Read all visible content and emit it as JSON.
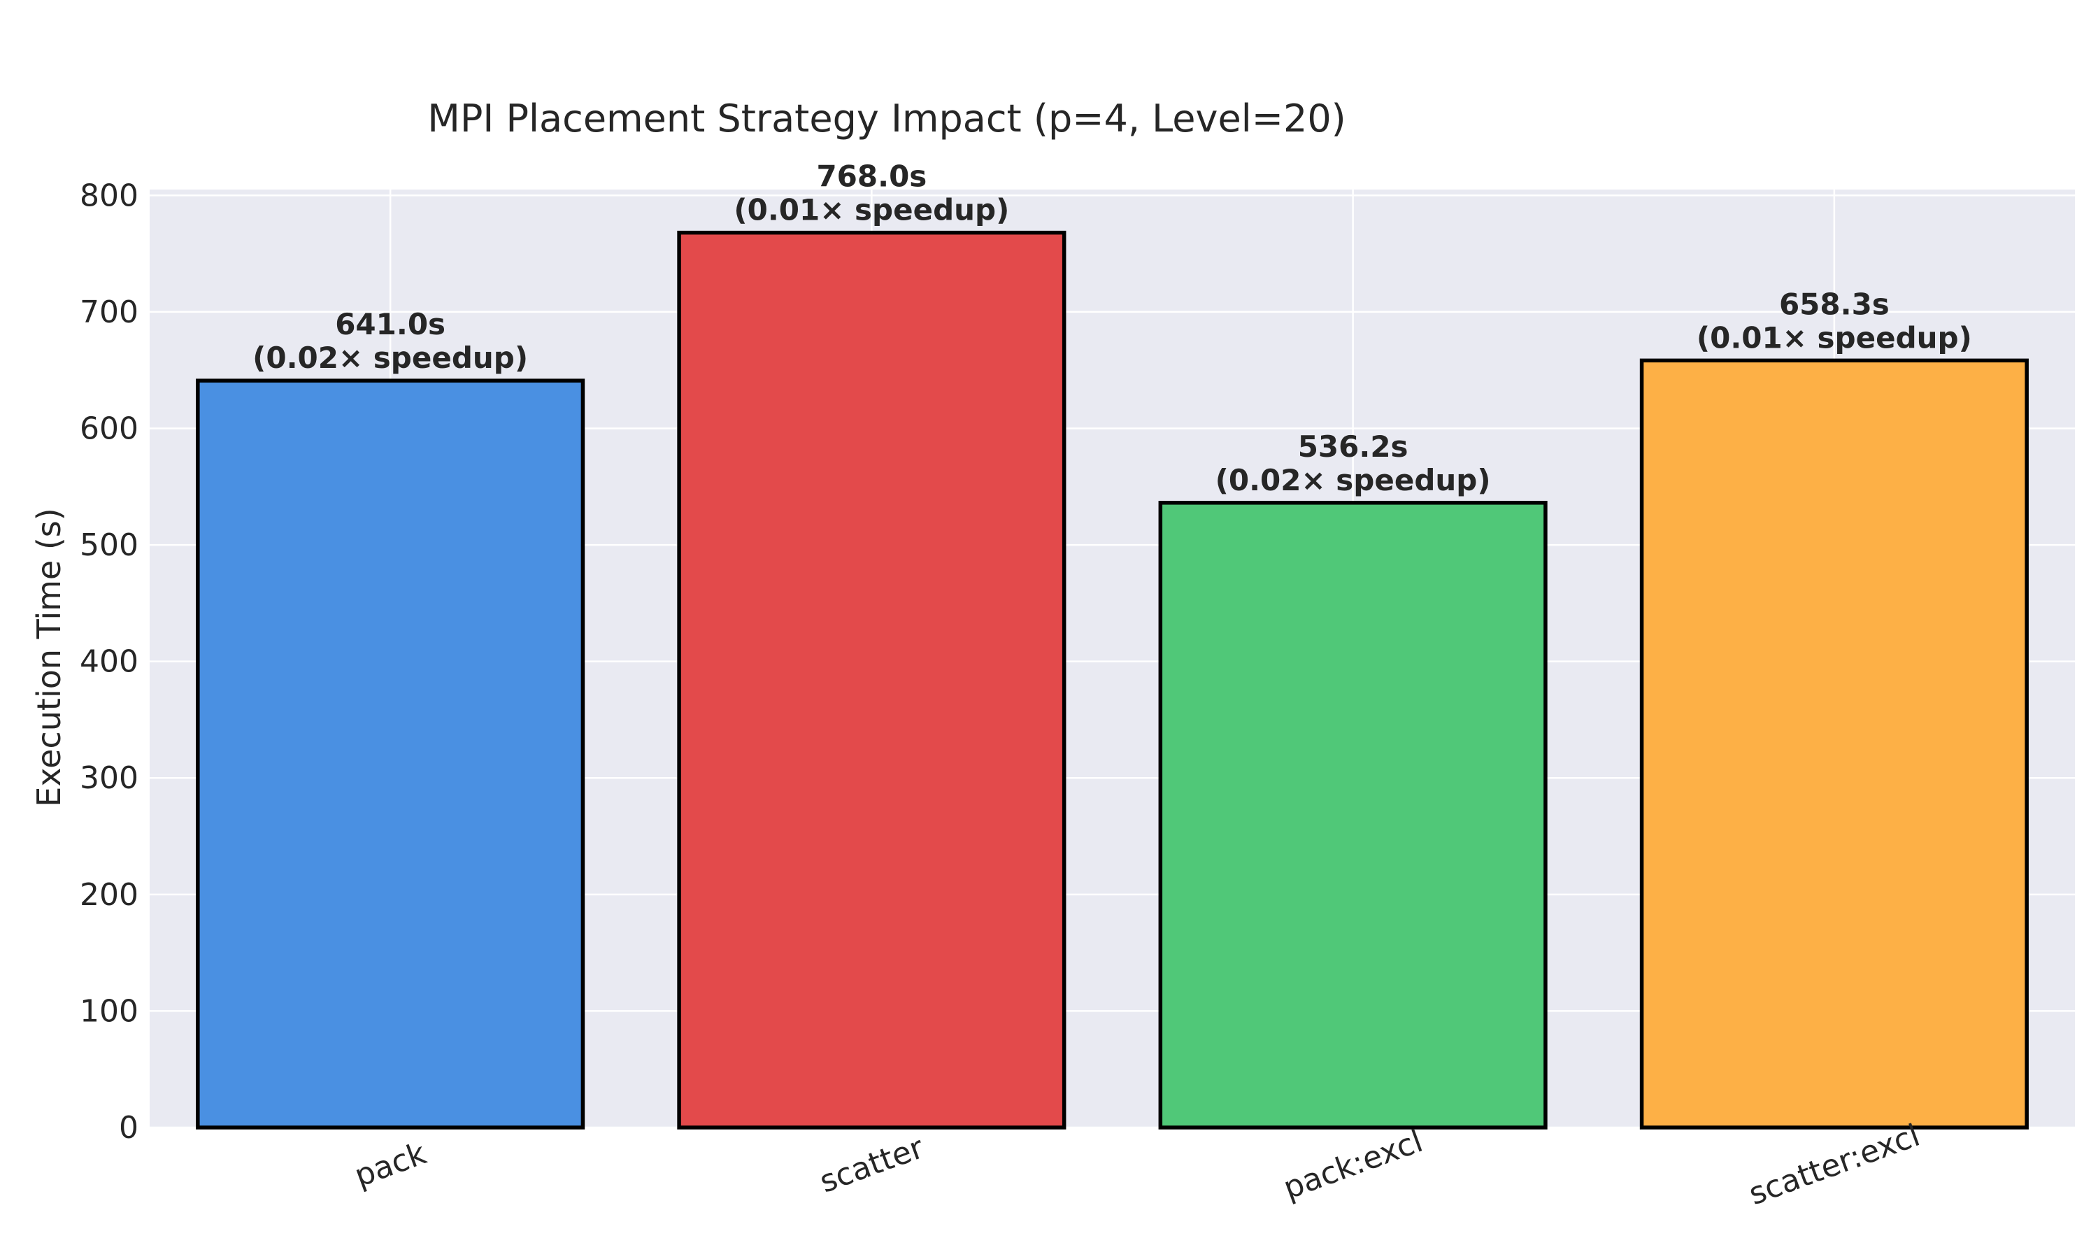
{
  "chart_data": {
    "type": "bar",
    "title": "MPI Placement Strategy Impact (p=4, Level=20)",
    "xlabel": "",
    "ylabel": "Execution Time (s)",
    "ylim": [
      0,
      805
    ],
    "yticks": [
      0,
      100,
      200,
      300,
      400,
      500,
      600,
      700,
      800
    ],
    "grid": true,
    "categories": [
      "pack",
      "scatter",
      "pack:excl",
      "scatter:excl"
    ],
    "values": [
      641.0,
      768.0,
      536.2,
      658.3
    ],
    "value_labels": [
      "641.0s",
      "768.0s",
      "536.2s",
      "658.3s"
    ],
    "speedup_labels": [
      "(0.02× speedup)",
      "(0.01× speedup)",
      "(0.02× speedup)",
      "(0.01× speedup)"
    ],
    "colors": [
      "#4a90e2",
      "#e34a4b",
      "#50c878",
      "#fdb046"
    ],
    "background": "#e9eaf2"
  }
}
